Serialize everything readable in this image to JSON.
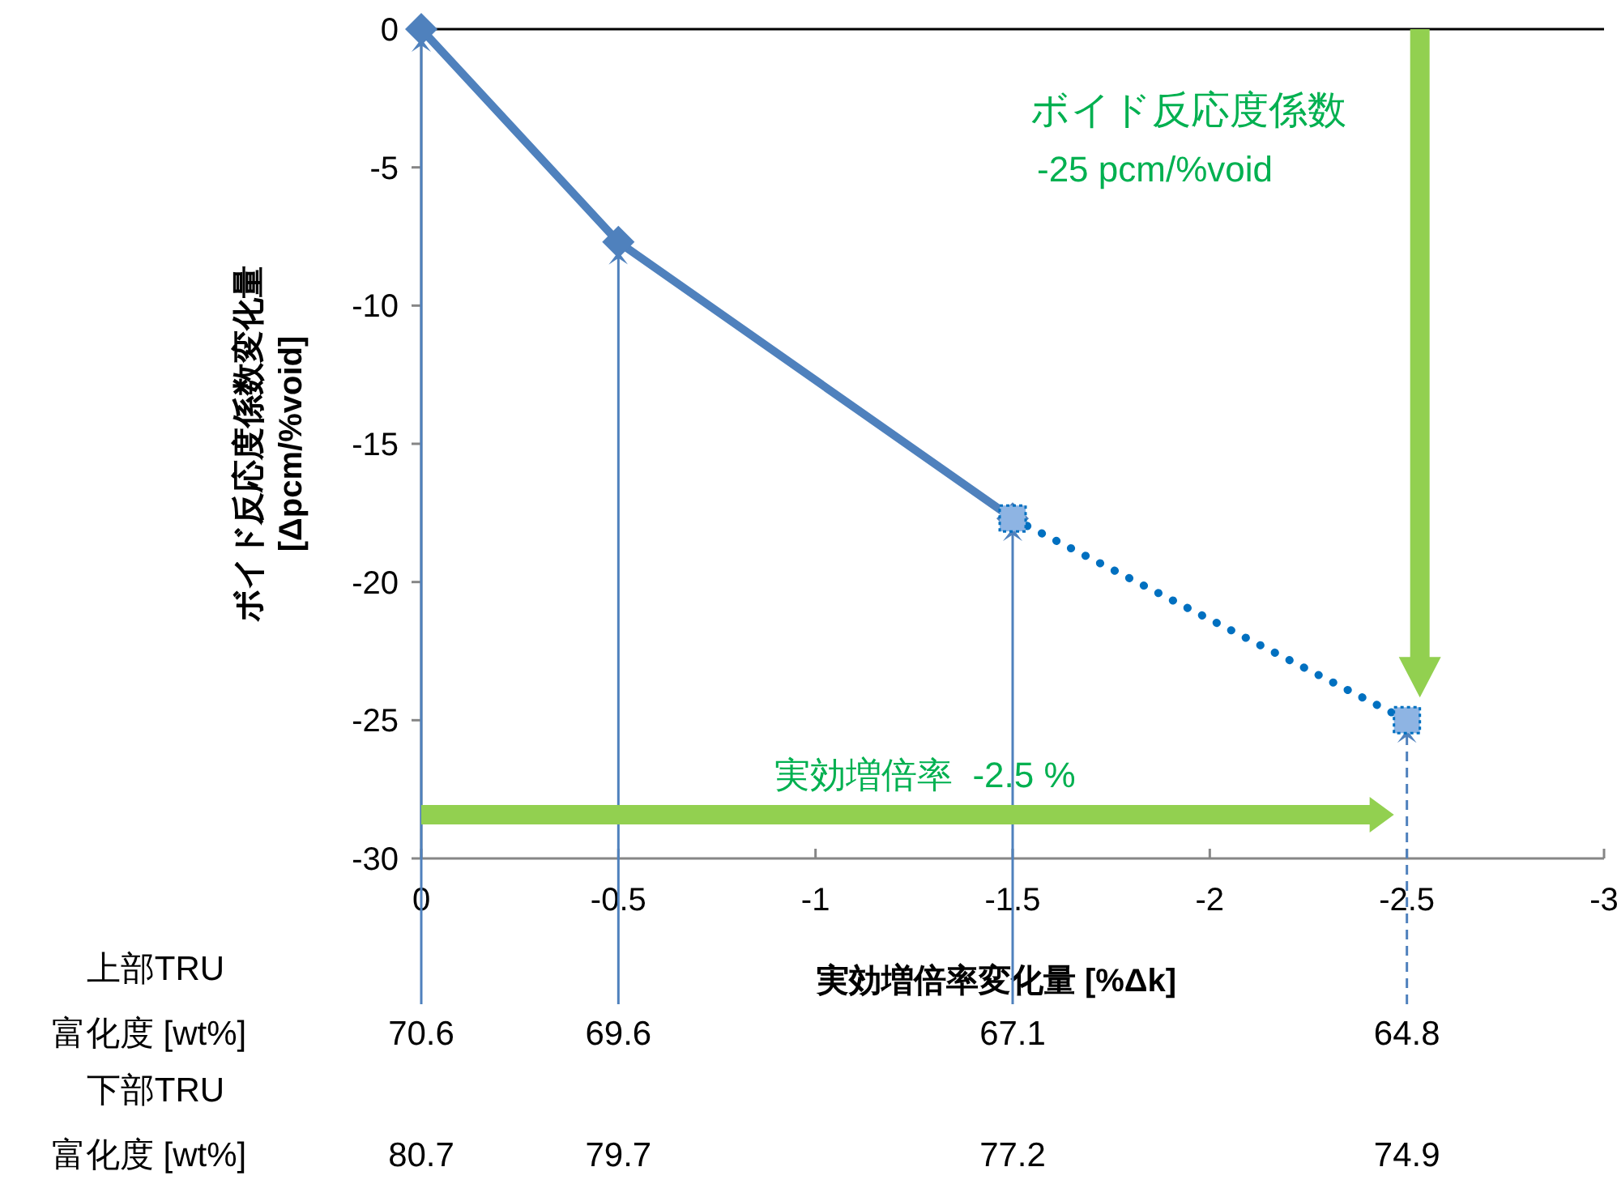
{
  "chart_data": {
    "type": "line",
    "xlabel": "実効増倍率変化量 [%Δk]",
    "ylabel": "ボイド反応度係数変化量\n[Δpcm/%void]",
    "xlim": [
      0,
      -3
    ],
    "xticks": [
      0,
      -0.5,
      -1,
      -1.5,
      -2,
      -2.5,
      -3
    ],
    "ylim": [
      -30,
      0
    ],
    "yticks": [
      0,
      -5,
      -10,
      -15,
      -20,
      -25,
      -30
    ],
    "grid": false,
    "legend": false,
    "ref_lines": [
      {
        "axis": "x",
        "value": 0,
        "color": "#4f81bd",
        "line_style": "solid"
      },
      {
        "axis": "x",
        "value": -0.5,
        "color": "#4f81bd",
        "line_style": "solid"
      },
      {
        "axis": "x",
        "value": -1.5,
        "color": "#4f81bd",
        "line_style": "solid"
      },
      {
        "axis": "x",
        "value": -2.5,
        "color": "#4f81bd",
        "line_style": "dashed"
      }
    ],
    "series": [
      {
        "x": [
          0,
          -0.5,
          -1.5
        ],
        "values": [
          0,
          -7.7,
          -17.7
        ],
        "color": "#4f81bd",
        "marker": "diamond",
        "line_style": "solid"
      },
      {
        "x": [
          -1.5,
          -2.5
        ],
        "values": [
          -17.7,
          -25
        ],
        "color": "#0070c0",
        "marker": "square",
        "line_style": "dotted"
      }
    ],
    "annotations": [
      "ボイド反応度係数",
      "-25 pcm/%void",
      "実効増倍率  -2.5 %",
      "上部TRU",
      "富化度 [wt%]",
      "70.6",
      "69.6",
      "67.1",
      "64.8",
      "下部TRU",
      "富化度 [wt%]",
      "80.7",
      "79.7",
      "77.2",
      "74.9"
    ]
  }
}
